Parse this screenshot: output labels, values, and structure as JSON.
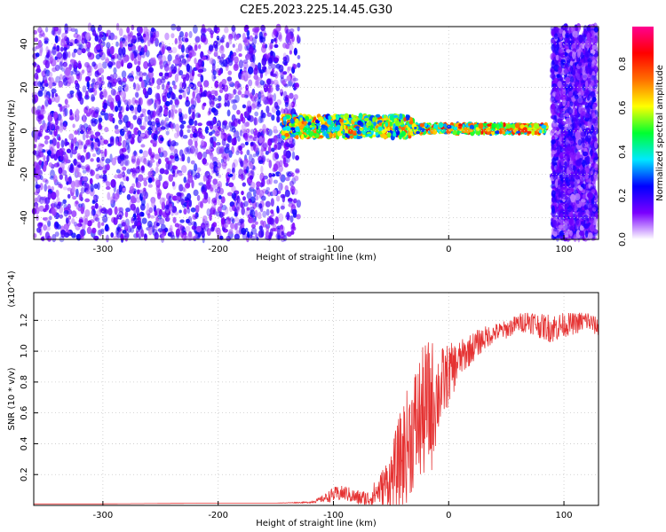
{
  "figure": {
    "title": "C2E5.2023.225.14.45.G30"
  },
  "chart_data": [
    {
      "type": "heatmap",
      "title": "C2E5.2023.225.14.45.G30",
      "xlabel": "Height of straight line (km)",
      "ylabel": "Frequency (Hz)",
      "xlim": [
        -360,
        130
      ],
      "ylim": [
        -50,
        48
      ],
      "xticks": [
        -300,
        -200,
        -100,
        0,
        100
      ],
      "yticks": [
        -40,
        -20,
        0,
        20,
        40
      ],
      "colorbar": {
        "label": "Normalized spectral amplitude",
        "range": [
          0,
          0.97
        ],
        "ticks": [
          "0.0",
          "0.2",
          "0.4",
          "0.6",
          "0.8"
        ],
        "colors": [
          "#ffffff",
          "#7a00ff",
          "#0000ff",
          "#00e8ff",
          "#00ff30",
          "#ffff00",
          "#ff7000",
          "#ff0000",
          "#ff0090"
        ]
      },
      "regions": [
        {
          "name": "noise",
          "x": [
            -360,
            -130
          ],
          "y": [
            -50,
            48
          ],
          "amplitude": 0.2
        },
        {
          "name": "noisy-signal",
          "x": [
            -145,
            -30
          ],
          "y_center": 2,
          "spread": 5,
          "amplitude": 0.5
        },
        {
          "name": "clean-signal",
          "x": [
            -30,
            85
          ],
          "y_center": 1,
          "spread": 2,
          "amplitude": 0.55
        },
        {
          "name": "noise",
          "x": [
            90,
            128
          ],
          "y": [
            -50,
            48
          ],
          "amplitude": 0.2
        }
      ],
      "grid": true
    },
    {
      "type": "line",
      "xlabel": "Height of straight line (km)",
      "ylabel": "SNR (10 * v/v)",
      "scale_label": "(x10^4)",
      "xlim": [
        -360,
        130
      ],
      "ylim": [
        0,
        1.38
      ],
      "xticks": [
        -300,
        -200,
        -100,
        0,
        100
      ],
      "yticks": [
        0.2,
        0.4,
        0.6,
        0.8,
        1.0,
        1.2
      ],
      "color": "#e53232",
      "x": [
        -360,
        -300,
        -200,
        -150,
        -120,
        -110,
        -100,
        -90,
        -80,
        -70,
        -60,
        -50,
        -40,
        -30,
        -20,
        -15,
        -10,
        0,
        10,
        20,
        30,
        40,
        50,
        60,
        70,
        80,
        90,
        100,
        110,
        120,
        128
      ],
      "y": [
        0.01,
        0.01,
        0.015,
        0.015,
        0.02,
        0.04,
        0.07,
        0.08,
        0.05,
        0.04,
        0.1,
        0.17,
        0.32,
        0.5,
        0.62,
        0.65,
        0.72,
        0.85,
        0.95,
        1.02,
        1.08,
        1.12,
        1.14,
        1.18,
        1.2,
        1.16,
        1.15,
        1.17,
        1.18,
        1.2,
        1.16
      ],
      "noise_amplitude": [
        0,
        0,
        0,
        0,
        0.005,
        0.02,
        0.05,
        0.05,
        0.05,
        0.06,
        0.1,
        0.2,
        0.35,
        0.4,
        0.45,
        0.45,
        0.3,
        0.2,
        0.12,
        0.1,
        0.08,
        0.06,
        0.06,
        0.06,
        0.08,
        0.08,
        0.1,
        0.08,
        0.07,
        0.07,
        0.06
      ],
      "grid": true
    }
  ]
}
